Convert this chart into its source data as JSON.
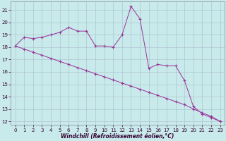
{
  "xlabel": "Windchill (Refroidissement éolien,°C)",
  "hours": [
    0,
    1,
    2,
    3,
    4,
    5,
    6,
    7,
    8,
    9,
    10,
    11,
    12,
    13,
    14,
    15,
    16,
    17,
    18,
    19,
    20,
    21,
    22,
    23
  ],
  "temp_line": [
    18.1,
    18.8,
    18.7,
    18.8,
    19.0,
    19.2,
    19.6,
    19.3,
    19.3,
    18.1,
    18.1,
    18.0,
    19.0,
    21.3,
    20.3,
    16.3,
    16.6,
    16.5,
    16.5,
    15.3,
    13.2,
    12.6,
    12.3,
    12.0
  ],
  "linear_line": [
    18.1,
    17.85,
    17.6,
    17.35,
    17.1,
    16.85,
    16.6,
    16.35,
    16.1,
    15.85,
    15.6,
    15.35,
    15.1,
    14.85,
    14.6,
    14.35,
    14.1,
    13.85,
    13.6,
    13.35,
    13.0,
    12.7,
    12.4,
    12.0
  ],
  "line_color": "#993399",
  "bg_color": "#c8eaea",
  "grid_color": "#aabbcc",
  "ylim": [
    11.7,
    21.7
  ],
  "xlim": [
    -0.5,
    23.5
  ],
  "yticks": [
    12,
    13,
    14,
    15,
    16,
    17,
    18,
    19,
    20,
    21
  ],
  "xticks": [
    0,
    1,
    2,
    3,
    4,
    5,
    6,
    7,
    8,
    9,
    10,
    11,
    12,
    13,
    14,
    15,
    16,
    17,
    18,
    19,
    20,
    21,
    22,
    23
  ],
  "tick_fontsize": 5,
  "xlabel_fontsize": 5.5
}
